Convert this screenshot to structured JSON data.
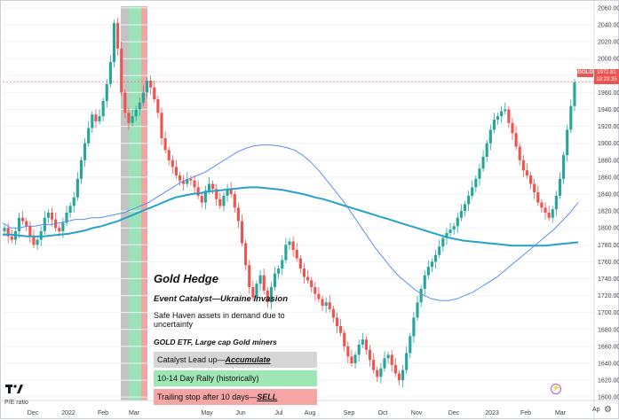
{
  "chart_data": {
    "type": "candlestick",
    "symbol": "GOLD",
    "last_price": "1972.81",
    "countdown": "18:23:35",
    "y_ticks": [
      1600,
      1620,
      1640,
      1660,
      1680,
      1700,
      1720,
      1740,
      1760,
      1780,
      1800,
      1820,
      1840,
      1860,
      1880,
      1900,
      1920,
      1940,
      1960,
      1980,
      2000,
      2020,
      2040,
      2060
    ],
    "ylim": [
      1596,
      2062
    ],
    "x_labels": [
      "Dec",
      "2022",
      "Feb",
      "Mar",
      "May",
      "Jun",
      "Jul",
      "Aug",
      "Sep",
      "Oct",
      "Nov",
      "Dec",
      "2023",
      "Feb",
      "Mar",
      "Ap"
    ],
    "close": [
      1800,
      1790,
      1786,
      1796,
      1812,
      1808,
      1802,
      1790,
      1780,
      1786,
      1796,
      1812,
      1818,
      1810,
      1800,
      1796,
      1806,
      1818,
      1826,
      1836,
      1858,
      1880,
      1900,
      1918,
      1934,
      1926,
      1932,
      1950,
      1970,
      1996,
      2042,
      2012,
      1960,
      1936,
      1924,
      1932,
      1940,
      1948,
      1960,
      1974,
      1966,
      1952,
      1936,
      1906,
      1892,
      1880,
      1872,
      1862,
      1856,
      1852,
      1858,
      1856,
      1848,
      1838,
      1830,
      1844,
      1852,
      1846,
      1834,
      1826,
      1838,
      1846,
      1840,
      1824,
      1808,
      1782,
      1756,
      1730,
      1718,
      1734,
      1744,
      1726,
      1712,
      1730,
      1746,
      1752,
      1762,
      1780,
      1784,
      1774,
      1764,
      1752,
      1742,
      1738,
      1730,
      1722,
      1716,
      1708,
      1712,
      1704,
      1694,
      1684,
      1676,
      1660,
      1648,
      1640,
      1650,
      1662,
      1668,
      1656,
      1644,
      1632,
      1624,
      1634,
      1646,
      1650,
      1638,
      1628,
      1620,
      1632,
      1652,
      1672,
      1694,
      1712,
      1728,
      1744,
      1754,
      1760,
      1768,
      1778,
      1788,
      1794,
      1798,
      1802,
      1812,
      1820,
      1828,
      1838,
      1848,
      1858,
      1870,
      1884,
      1900,
      1916,
      1928,
      1932,
      1938,
      1940,
      1924,
      1912,
      1896,
      1880,
      1868,
      1862,
      1852,
      1842,
      1830,
      1824,
      1818,
      1812,
      1822,
      1838,
      1858,
      1886,
      1916,
      1944,
      1972
    ],
    "ma_fast": [
      1806,
      1800,
      1800,
      1802,
      1802,
      1804,
      1804,
      1806,
      1808,
      1810,
      1810,
      1812,
      1812,
      1814,
      1816,
      1818,
      1822,
      1826,
      1830,
      1836,
      1842,
      1848,
      1854,
      1858,
      1862,
      1866,
      1872,
      1878,
      1884,
      1890,
      1894,
      1897,
      1898,
      1898,
      1897,
      1895,
      1892,
      1886,
      1878,
      1868,
      1856,
      1844,
      1832,
      1818,
      1804,
      1790,
      1776,
      1764,
      1752,
      1742,
      1734,
      1726,
      1720,
      1716,
      1714,
      1714,
      1716,
      1720,
      1724,
      1730,
      1736,
      1742,
      1750,
      1758,
      1766,
      1774,
      1782,
      1790,
      1798,
      1808,
      1818,
      1830
    ],
    "ma_slow": [
      1792,
      1792,
      1791,
      1790,
      1790,
      1790,
      1791,
      1792,
      1793,
      1795,
      1797,
      1800,
      1802,
      1805,
      1808,
      1812,
      1816,
      1820,
      1824,
      1828,
      1832,
      1836,
      1838,
      1840,
      1841,
      1843,
      1844,
      1845,
      1846,
      1847,
      1848,
      1848,
      1847,
      1846,
      1845,
      1843,
      1841,
      1839,
      1836,
      1834,
      1831,
      1828,
      1825,
      1822,
      1819,
      1816,
      1813,
      1810,
      1807,
      1804,
      1801,
      1798,
      1795,
      1792,
      1789,
      1787,
      1785,
      1784,
      1783,
      1782,
      1781,
      1780,
      1779,
      1779,
      1779,
      1779,
      1779,
      1780,
      1781,
      1782,
      1783
    ]
  },
  "highlight_bands": [
    {
      "color": "#bdbdbd"
    },
    {
      "color": "#8fe0b0"
    },
    {
      "color": "#f49a9a"
    }
  ],
  "panel": {
    "title": "Gold Hedge",
    "catalyst": "Event Catalyst—Ukraine Invasion",
    "description": "Safe Haven assets in demand due to uncertainty",
    "etf": "GOLD ETF, Large cap Gold miners",
    "box1_prefix": "Catalyst Lead up—",
    "box1_emphasis": "Accumulate",
    "box1_color": "#d6d6d6",
    "box2_text": "10-14 Day Rally (historically)",
    "box2_color": "#9ee6b4",
    "box3_prefix": "Trailing stop after 10 days—",
    "box3_emphasis": "SELL",
    "box3_color": "#f6a5a5"
  },
  "badge": {
    "symbol": "GOLD",
    "price": "1972.81",
    "countdown": "18:23:35"
  },
  "indicator_label": "P/E ratio",
  "colors": {
    "up": "#26a69a",
    "down": "#ef5350",
    "ma_fast": "#5b8def",
    "ma_slow": "#26a2c8",
    "band_grey": "#bdbdbd",
    "band_green": "#8fe0b0",
    "band_red": "#f49a9a"
  },
  "icons": {
    "logo": "tradingview-logo",
    "settings": "gear-icon",
    "alert": "lightning-icon"
  }
}
